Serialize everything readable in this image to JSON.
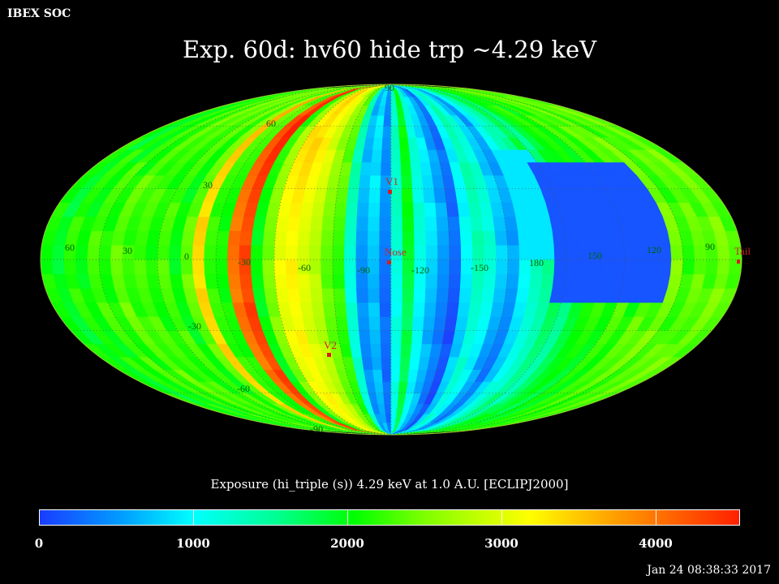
{
  "header": {
    "corner_label": "IBEX SOC",
    "title": "Exp.   60d: hv60 hide trp ~4.29 keV"
  },
  "colorbar": {
    "title": "Exposure (hi_triple (s))  4.29 keV at 1.0 A.U. [ECLIPJ2000]",
    "min": 0,
    "max": 4550,
    "ticks": [
      {
        "value": 0,
        "label": "0"
      },
      {
        "value": 1000,
        "label": "1000"
      },
      {
        "value": 2000,
        "label": "2000"
      },
      {
        "value": 3000,
        "label": "3000"
      },
      {
        "value": 4000,
        "label": "4000"
      }
    ]
  },
  "footer": {
    "timestamp": "Jan 24 08:38:33 2017"
  },
  "map": {
    "projection": "mollweide",
    "center_longitude": 255,
    "longitude_labels": [
      "60",
      "30",
      "0",
      "-30",
      "-60",
      "-90",
      "-120",
      "-150",
      "180",
      "150",
      "120",
      "90"
    ],
    "latitude_labels": {
      "north": [
        "90",
        "60",
        "30"
      ],
      "south": [
        "-30",
        "-60",
        "-90"
      ]
    },
    "markers": [
      {
        "name": "V1",
        "label": "V1",
        "color": "#d22020"
      },
      {
        "name": "Nose",
        "label": "Nose",
        "color": "#d22020"
      },
      {
        "name": "V2",
        "label": "V2",
        "color": "#d22020"
      },
      {
        "name": "Tail",
        "label": "Tail",
        "color": "#d22020"
      }
    ]
  }
}
